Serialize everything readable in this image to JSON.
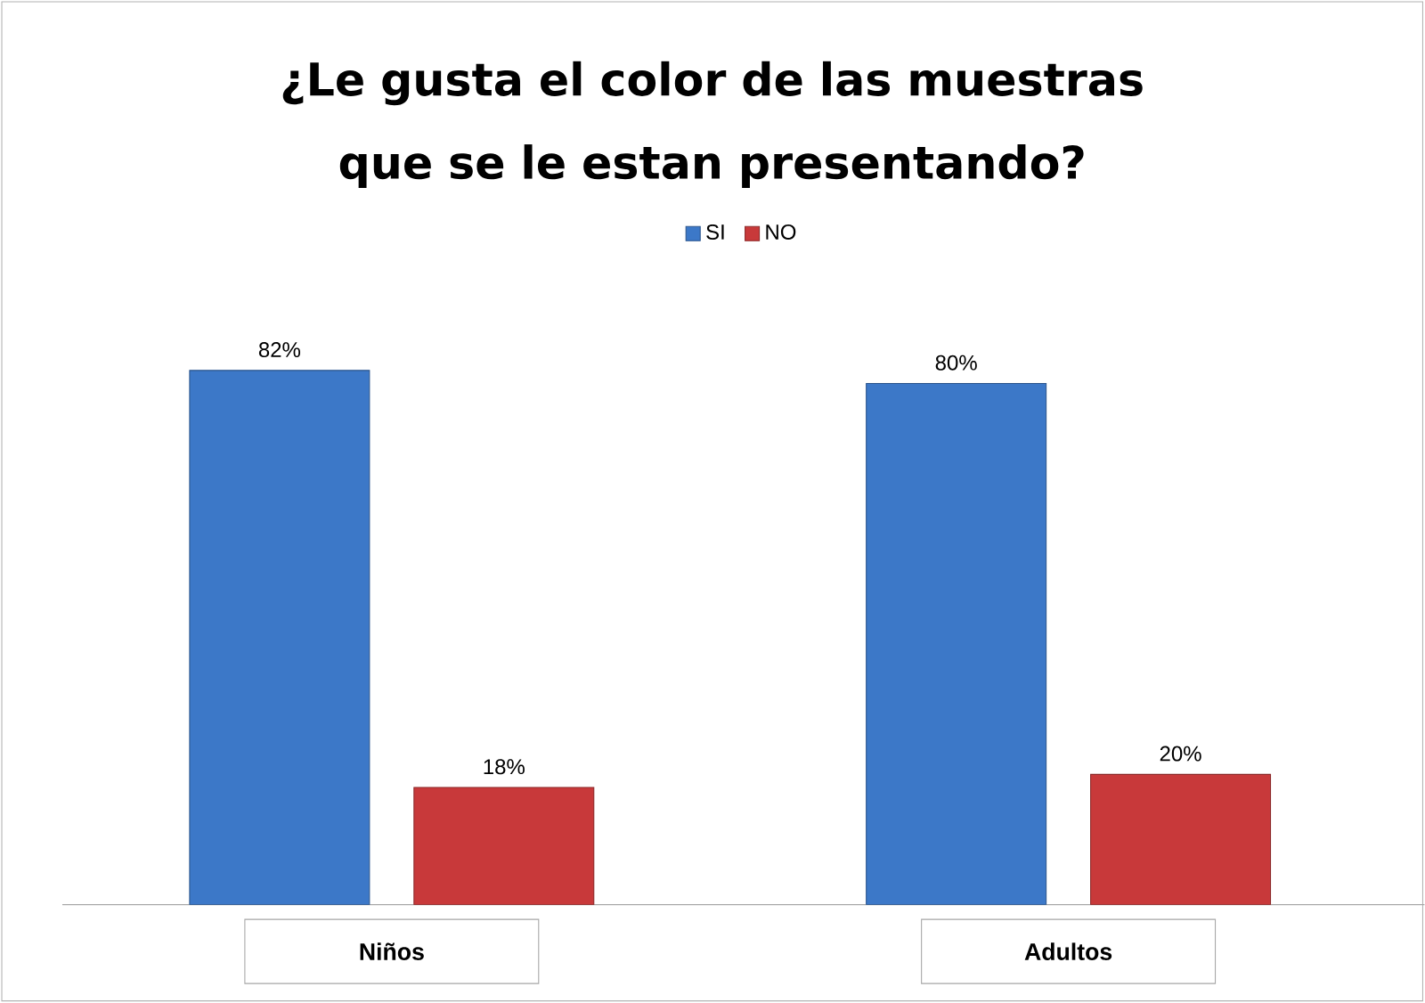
{
  "chart_data": {
    "type": "bar",
    "title": "¿Le gusta el color de las muestras que se le estan presentando?",
    "categories": [
      "Niños",
      "Adultos"
    ],
    "series": [
      {
        "name": "SI",
        "color": "#3c78c8",
        "values": [
          82,
          80
        ],
        "value_labels": [
          "82%",
          "80%"
        ]
      },
      {
        "name": "NO",
        "color": "#c8393a",
        "values": [
          18,
          20
        ],
        "value_labels": [
          "18%",
          "20%"
        ]
      }
    ],
    "legend": "top"
  }
}
